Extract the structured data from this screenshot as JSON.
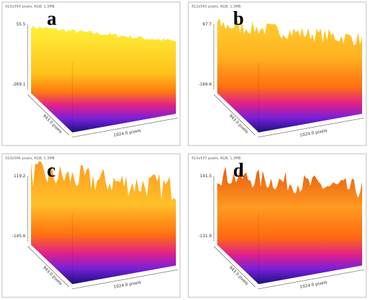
{
  "panels": [
    {
      "label": "a",
      "header": "610x554 pixels; RGB; 1.3MB",
      "z_max": "55.5",
      "z_min": "-269.1",
      "y_axis": "943.0 pixels",
      "x_axis": "1024.0 pixels"
    },
    {
      "label": "b",
      "header": "612x543 pixels; RGB; 1.3MB",
      "z_max": "97.7",
      "z_min": "-166.6",
      "y_axis": "943.0 pixels",
      "x_axis": "1024.0 pixels"
    },
    {
      "label": "c",
      "header": "610x566 pixels; RGB; 1.3MB",
      "z_max": "119.2",
      "z_min": "-145.6",
      "y_axis": "943.0 pixels",
      "x_axis": "1024.0 pixels"
    },
    {
      "label": "d",
      "header": "610x537 pixels; RGB; 1.3MB",
      "z_max": "141.5",
      "z_min": "-131.9",
      "y_axis": "943.0 pixels",
      "x_axis": "1024.0 pixels"
    }
  ]
}
